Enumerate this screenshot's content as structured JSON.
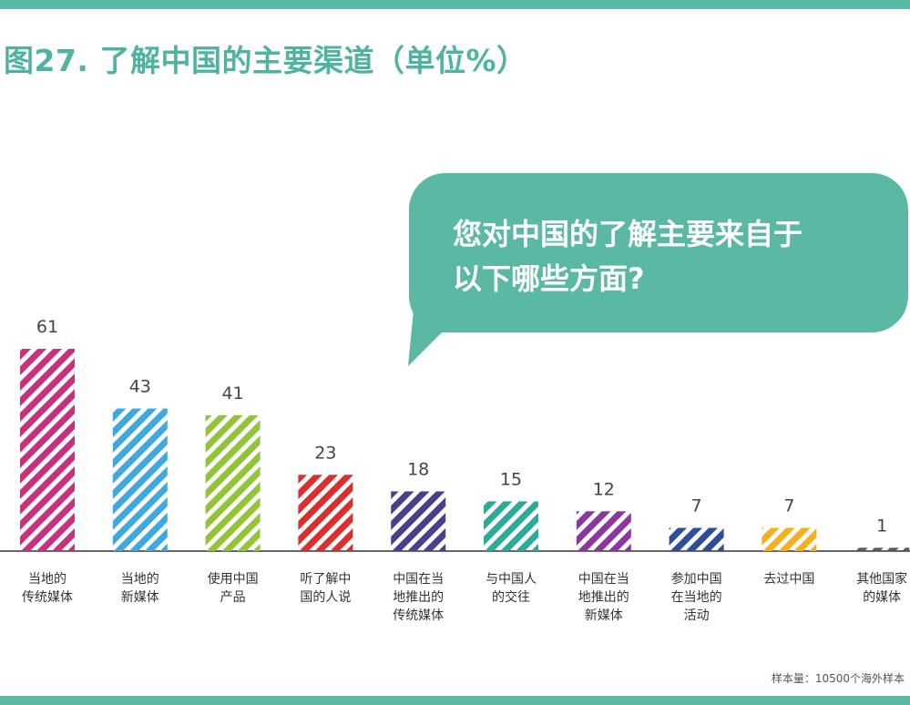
{
  "title": "图27. 了解中国的主要渠道（单位%）",
  "bubble": {
    "question_line1": "您对中国的了解主要来自于",
    "question_line2": "以下哪些方面?"
  },
  "source_note": "样本量：10500个海外样本",
  "colors": {
    "accent": "#5bb8a5",
    "title": "#4fb3a1",
    "axis": "#333333"
  },
  "chart_data": {
    "type": "bar",
    "title": "图27. 了解中国的主要渠道（单位%）",
    "xlabel": "",
    "ylabel": "",
    "ylim": [
      0,
      61
    ],
    "grid": false,
    "legend": "none",
    "categories": [
      [
        "当地的",
        "传统媒体"
      ],
      [
        "当地的",
        "新媒体"
      ],
      [
        "使用中国",
        "产品"
      ],
      [
        "听了解中",
        "国的人说"
      ],
      [
        "中国在当",
        "地推出的",
        "传统媒体"
      ],
      [
        "与中国人",
        "的交往"
      ],
      [
        "中国在当",
        "地推出的",
        "新媒体"
      ],
      [
        "参加中国",
        "在当地的",
        "活动"
      ],
      [
        "去过中国"
      ],
      [
        "其他国家",
        "的媒体"
      ]
    ],
    "values": [
      61,
      43,
      41,
      23,
      18,
      15,
      12,
      7,
      7,
      1
    ],
    "bar_colors": [
      "#c8317d",
      "#3da9df",
      "#92c43a",
      "#d9302e",
      "#4b3d8f",
      "#2eaa9a",
      "#8c36a0",
      "#2e4f98",
      "#f3b122",
      "#555a6b"
    ],
    "bar_pattern": "diagonal-stripes"
  }
}
